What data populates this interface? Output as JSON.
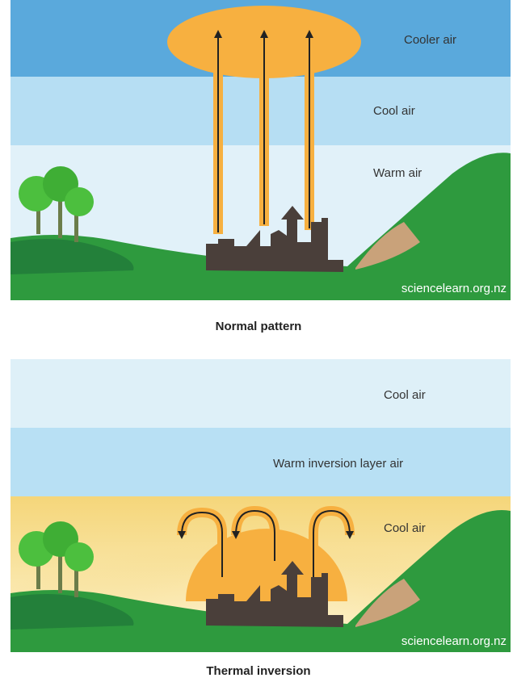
{
  "panels": [
    {
      "labels": [
        "Cooler air",
        "Cool air",
        "Warm air"
      ],
      "watermark": "sciencelearn.org.nz",
      "caption": "Normal pattern"
    },
    {
      "labels": [
        "Cool air",
        "Warm inversion layer air",
        "Cool air"
      ],
      "watermark": "sciencelearn.org.nz",
      "caption": "Thermal inversion"
    }
  ]
}
